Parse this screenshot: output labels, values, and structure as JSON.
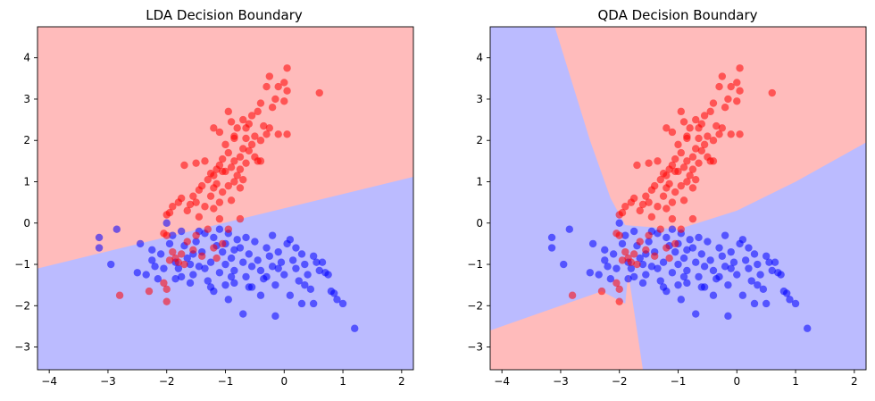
{
  "colors": {
    "class0_region": "#bbbbff",
    "class1_region": "#ffbbbb",
    "class0_points": "#0000ff",
    "class1_points": "#ff0000"
  },
  "chart_data": [
    {
      "type": "scatter",
      "title": "LDA Decision Boundary",
      "xlabel": "",
      "ylabel": "",
      "xlim": [
        -4.2,
        2.2
      ],
      "ylim": [
        -3.55,
        4.75
      ],
      "xticks": [
        -4,
        -3,
        -2,
        -1,
        0,
        1,
        2
      ],
      "yticks": [
        -3,
        -2,
        -1,
        0,
        1,
        2,
        3,
        4
      ],
      "xtick_labels": [
        "−4",
        "−3",
        "−2",
        "−1",
        "0",
        "1",
        "2"
      ],
      "ytick_labels": [
        "−3",
        "−2",
        "−1",
        "0",
        "1",
        "2",
        "3",
        "4"
      ],
      "grid": false,
      "decision_boundary": {
        "kind": "linear",
        "x": [
          -4.2,
          2.2
        ],
        "y": [
          -1.1,
          1.12
        ]
      },
      "regions": [
        {
          "class": 1,
          "side": "above",
          "color": "#ffbbbb"
        },
        {
          "class": 0,
          "side": "below",
          "color": "#bbbbff"
        }
      ]
    },
    {
      "type": "scatter",
      "title": "QDA Decision Boundary",
      "xlabel": "",
      "ylabel": "",
      "xlim": [
        -4.2,
        2.2
      ],
      "ylim": [
        -3.55,
        4.75
      ],
      "xticks": [
        -4,
        -3,
        -2,
        -1,
        0,
        1,
        2
      ],
      "yticks": [
        -3,
        -2,
        -1,
        0,
        1,
        2,
        3,
        4
      ],
      "xtick_labels": [
        "−4",
        "−3",
        "−2",
        "−1",
        "0",
        "1",
        "2"
      ],
      "ytick_labels": [
        "−3",
        "−2",
        "−1",
        "0",
        "1",
        "2",
        "3",
        "4"
      ],
      "grid": false,
      "decision_boundary": {
        "kind": "quadratic",
        "curves": [
          {
            "x": [
              -3.1,
              -2.5,
              -2.15,
              -1.9
            ],
            "y": [
              4.75,
              2.0,
              0.6,
              -0.05
            ]
          },
          {
            "x": [
              -1.9,
              -1.0,
              0.0,
              1.0,
              2.2
            ],
            "y": [
              -0.05,
              -0.15,
              0.3,
              1.0,
              1.95
            ]
          },
          {
            "x": [
              -1.9,
              -1.85,
              -1.7,
              -1.6
            ],
            "y": [
              -0.05,
              -1.2,
              -2.6,
              -3.55
            ]
          },
          {
            "x": [
              -4.2,
              -3.4,
              -2.7,
              -2.3,
              -1.9
            ],
            "y": [
              -2.6,
              -2.2,
              -1.85,
              -1.65,
              -1.95
            ]
          }
        ]
      },
      "regions": [
        {
          "class": 1,
          "location": "top",
          "color": "#ffbbbb"
        },
        {
          "class": 1,
          "location": "bottom-left",
          "color": "#ffbbbb"
        },
        {
          "class": 0,
          "location": "left",
          "color": "#bbbbff"
        },
        {
          "class": 0,
          "location": "right",
          "color": "#bbbbff"
        }
      ]
    }
  ],
  "points": {
    "class1": [
      [
        0.05,
        3.75
      ],
      [
        0.6,
        3.15
      ],
      [
        -0.25,
        3.55
      ],
      [
        0.0,
        3.4
      ],
      [
        -0.1,
        3.3
      ],
      [
        0.05,
        3.2
      ],
      [
        -0.15,
        3.0
      ],
      [
        -0.2,
        2.8
      ],
      [
        0.0,
        2.95
      ],
      [
        -0.3,
        3.3
      ],
      [
        -0.4,
        2.9
      ],
      [
        -0.45,
        2.7
      ],
      [
        -0.55,
        2.6
      ],
      [
        -0.6,
        2.4
      ],
      [
        -0.7,
        2.5
      ],
      [
        -0.8,
        2.3
      ],
      [
        -0.85,
        2.1
      ],
      [
        -0.95,
        2.7
      ],
      [
        -0.9,
        2.45
      ],
      [
        -1.1,
        2.2
      ],
      [
        -1.2,
        2.3
      ],
      [
        -0.65,
        2.3
      ],
      [
        -0.5,
        2.1
      ],
      [
        -0.35,
        2.35
      ],
      [
        -0.25,
        2.3
      ],
      [
        -0.3,
        2.15
      ],
      [
        -0.1,
        2.15
      ],
      [
        0.05,
        2.15
      ],
      [
        -0.4,
        2.0
      ],
      [
        -0.55,
        1.9
      ],
      [
        -0.6,
        1.75
      ],
      [
        -0.7,
        1.8
      ],
      [
        -0.75,
        1.6
      ],
      [
        -0.85,
        1.5
      ],
      [
        -0.9,
        1.35
      ],
      [
        -0.95,
        1.7
      ],
      [
        -1.0,
        1.9
      ],
      [
        -1.05,
        1.55
      ],
      [
        -1.1,
        1.4
      ],
      [
        -1.15,
        1.3
      ],
      [
        -1.2,
        1.15
      ],
      [
        -1.25,
        1.2
      ],
      [
        -1.3,
        1.05
      ],
      [
        -1.35,
        1.5
      ],
      [
        -1.5,
        1.45
      ],
      [
        -1.7,
        1.4
      ],
      [
        -0.45,
        1.5
      ],
      [
        -0.5,
        1.6
      ],
      [
        -0.65,
        1.45
      ],
      [
        -0.8,
        1.15
      ],
      [
        -0.85,
        1.0
      ],
      [
        -0.95,
        0.9
      ],
      [
        -1.0,
        1.25
      ],
      [
        -1.15,
        0.95
      ],
      [
        -1.4,
        0.9
      ],
      [
        -1.45,
        0.8
      ],
      [
        -1.55,
        0.65
      ],
      [
        -1.6,
        0.45
      ],
      [
        -1.75,
        0.6
      ],
      [
        -1.8,
        0.5
      ],
      [
        -1.9,
        0.4
      ],
      [
        -1.95,
        0.25
      ],
      [
        -2.0,
        0.2
      ],
      [
        -1.65,
        0.3
      ],
      [
        -1.5,
        0.5
      ],
      [
        -1.35,
        0.4
      ],
      [
        -1.2,
        0.35
      ],
      [
        -1.1,
        0.5
      ],
      [
        -1.25,
        0.65
      ],
      [
        -1.05,
        0.75
      ],
      [
        -0.75,
        0.85
      ],
      [
        -0.7,
        1.05
      ],
      [
        -0.75,
        1.3
      ],
      [
        -1.2,
        0.85
      ],
      [
        -1.45,
        0.15
      ],
      [
        -1.1,
        0.1
      ],
      [
        -0.75,
        0.1
      ],
      [
        -0.4,
        1.5
      ],
      [
        -0.9,
        0.55
      ],
      [
        -1.3,
        -0.15
      ],
      [
        -1.5,
        -0.3
      ],
      [
        -1.65,
        -0.45
      ],
      [
        -1.75,
        -0.75
      ],
      [
        -1.85,
        -0.85
      ],
      [
        -1.95,
        -0.9
      ],
      [
        -2.0,
        -0.3
      ],
      [
        -2.05,
        -0.25
      ],
      [
        -1.9,
        -0.7
      ],
      [
        -1.7,
        -1.0
      ],
      [
        -1.55,
        -0.65
      ],
      [
        -1.4,
        -0.8
      ],
      [
        -1.2,
        -0.6
      ],
      [
        -1.05,
        -0.5
      ],
      [
        -1.15,
        -0.85
      ],
      [
        -2.05,
        -1.45
      ],
      [
        -2.0,
        -1.6
      ],
      [
        -2.0,
        -1.9
      ],
      [
        -2.3,
        -1.65
      ],
      [
        -2.8,
        -1.75
      ],
      [
        -1.8,
        -0.95
      ],
      [
        -0.95,
        -0.15
      ],
      [
        -1.05,
        1.25
      ],
      [
        -0.85,
        2.05
      ],
      [
        -0.65,
        2.05
      ]
    ],
    "class0": [
      [
        -3.15,
        -0.35
      ],
      [
        -3.15,
        -0.6
      ],
      [
        -2.85,
        -0.15
      ],
      [
        -2.95,
        -1.0
      ],
      [
        -2.45,
        -0.5
      ],
      [
        -2.5,
        -1.2
      ],
      [
        -2.35,
        -1.25
      ],
      [
        -2.25,
        -0.9
      ],
      [
        -2.2,
        -1.05
      ],
      [
        -2.1,
        -0.75
      ],
      [
        -2.05,
        -1.1
      ],
      [
        -1.95,
        -0.5
      ],
      [
        -1.9,
        -0.3
      ],
      [
        -2.0,
        0.0
      ],
      [
        -1.85,
        -0.95
      ],
      [
        -1.8,
        -1.1
      ],
      [
        -1.75,
        -1.3
      ],
      [
        -1.7,
        -0.55
      ],
      [
        -1.65,
        -0.85
      ],
      [
        -1.6,
        -1.0
      ],
      [
        -1.55,
        -1.25
      ],
      [
        -1.5,
        -0.45
      ],
      [
        -1.45,
        -0.2
      ],
      [
        -1.4,
        -0.7
      ],
      [
        -1.35,
        -1.1
      ],
      [
        -1.3,
        -1.4
      ],
      [
        -1.25,
        -0.95
      ],
      [
        -1.2,
        -0.35
      ],
      [
        -1.15,
        -0.55
      ],
      [
        -1.1,
        -1.2
      ],
      [
        -1.05,
        -0.7
      ],
      [
        -1.0,
        -1.0
      ],
      [
        -0.95,
        -0.25
      ],
      [
        -0.9,
        -0.85
      ],
      [
        -0.85,
        -1.15
      ],
      [
        -0.8,
        -0.4
      ],
      [
        -0.75,
        -0.6
      ],
      [
        -0.7,
        -0.95
      ],
      [
        -0.65,
        -1.3
      ],
      [
        -0.6,
        -0.75
      ],
      [
        -0.55,
        -1.05
      ],
      [
        -0.5,
        -0.45
      ],
      [
        -0.45,
        -0.9
      ],
      [
        -0.4,
        -1.15
      ],
      [
        -0.35,
        -1.35
      ],
      [
        -0.3,
        -0.6
      ],
      [
        -0.25,
        -0.8
      ],
      [
        -0.2,
        -1.05
      ],
      [
        -0.15,
        -1.5
      ],
      [
        -0.1,
        -0.7
      ],
      [
        -0.05,
        -0.95
      ],
      [
        0.0,
        -1.25
      ],
      [
        0.1,
        -0.4
      ],
      [
        0.15,
        -0.9
      ],
      [
        0.2,
        -1.1
      ],
      [
        0.25,
        -1.4
      ],
      [
        0.3,
        -0.75
      ],
      [
        0.35,
        -1.0
      ],
      [
        0.4,
        -1.25
      ],
      [
        0.45,
        -1.6
      ],
      [
        0.5,
        -0.8
      ],
      [
        0.55,
        -0.95
      ],
      [
        0.6,
        -1.15
      ],
      [
        0.7,
        -1.2
      ],
      [
        0.75,
        -1.25
      ],
      [
        0.8,
        -1.65
      ],
      [
        0.9,
        -1.85
      ],
      [
        1.0,
        -1.95
      ],
      [
        1.2,
        -2.55
      ],
      [
        0.85,
        -1.7
      ],
      [
        0.5,
        -1.95
      ],
      [
        0.3,
        -1.95
      ],
      [
        0.1,
        -1.75
      ],
      [
        -0.15,
        -2.25
      ],
      [
        -0.4,
        -1.75
      ],
      [
        -0.7,
        -2.2
      ],
      [
        -0.95,
        -1.85
      ],
      [
        -1.0,
        -1.5
      ],
      [
        -1.25,
        -1.55
      ],
      [
        -1.45,
        -1.05
      ],
      [
        -1.6,
        -1.45
      ],
      [
        -1.85,
        -1.35
      ],
      [
        -2.15,
        -1.35
      ],
      [
        -2.25,
        -0.65
      ],
      [
        -1.0,
        -0.5
      ],
      [
        -0.85,
        -1.45
      ],
      [
        -0.6,
        -1.55
      ],
      [
        -0.3,
        -1.3
      ],
      [
        -0.2,
        -0.3
      ],
      [
        0.05,
        -0.5
      ],
      [
        0.2,
        -0.6
      ],
      [
        -1.55,
        -0.75
      ],
      [
        -1.35,
        -0.25
      ],
      [
        -1.1,
        -0.15
      ],
      [
        -0.55,
        -1.55
      ],
      [
        -0.1,
        -1.1
      ],
      [
        0.35,
        -1.5
      ],
      [
        -1.75,
        -0.2
      ],
      [
        -0.85,
        -0.65
      ],
      [
        -0.65,
        -0.35
      ],
      [
        0.65,
        -0.95
      ],
      [
        -1.2,
        -1.65
      ],
      [
        -0.9,
        -1.3
      ]
    ]
  }
}
